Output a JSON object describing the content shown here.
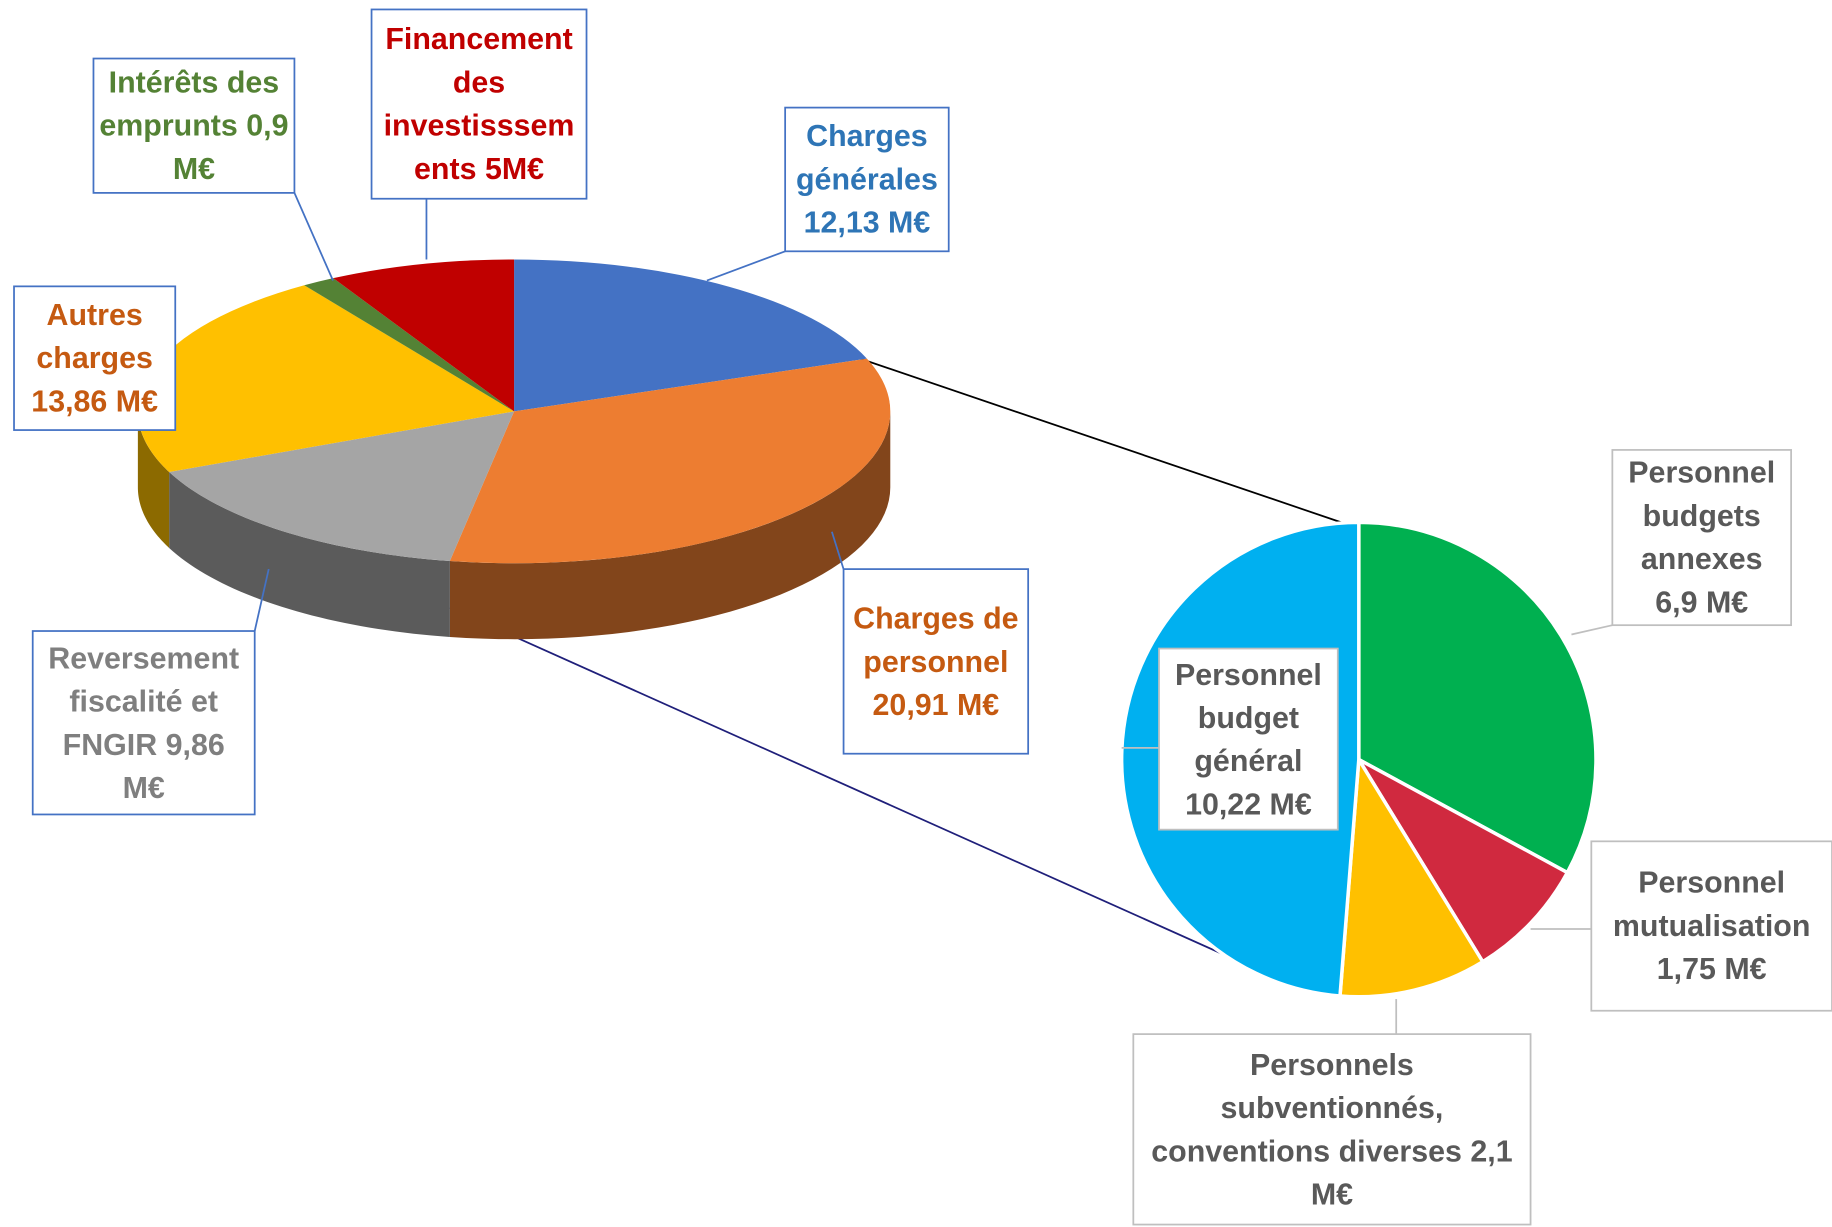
{
  "chart_data": [
    {
      "type": "pie3d",
      "categories": [
        "Charges générales",
        "Charges de personnel",
        "Reversement fiscalité et FNGIR",
        "Autres charges",
        "Intérêts des emprunts",
        "Financement des investisssements"
      ],
      "values": [
        12.13,
        20.91,
        9.86,
        13.86,
        0.9,
        5
      ],
      "value_labels": [
        "12,13 M€",
        "20,91 M€",
        "9,86 M€",
        "13,86 M€",
        "0,9 M€",
        "5M€"
      ],
      "colors": [
        "#4472c4",
        "#ed7d31",
        "#a5a5a5",
        "#ffc000",
        "#548235",
        "#c00000"
      ],
      "label_colors": [
        "#2e75b6",
        "#c55a11",
        "#7f7f7f",
        "#c55a11",
        "#548235",
        "#c00000"
      ]
    },
    {
      "type": "pie",
      "categories": [
        "Personnel budgets annexes",
        "Personnel mutualisation",
        "Personnels subventionnés, conventions diverses",
        "Personnel budget général"
      ],
      "values": [
        6.9,
        1.75,
        2.1,
        10.22
      ],
      "value_labels": [
        "6,9 M€",
        "1,75 M€",
        "2,1 M€",
        "10,22 M€"
      ],
      "colors": [
        "#00b050",
        "#d0293f",
        "#ffc000",
        "#00b0f0"
      ],
      "label_colors": [
        "#595959",
        "#595959",
        "#595959",
        "#595959"
      ]
    }
  ]
}
